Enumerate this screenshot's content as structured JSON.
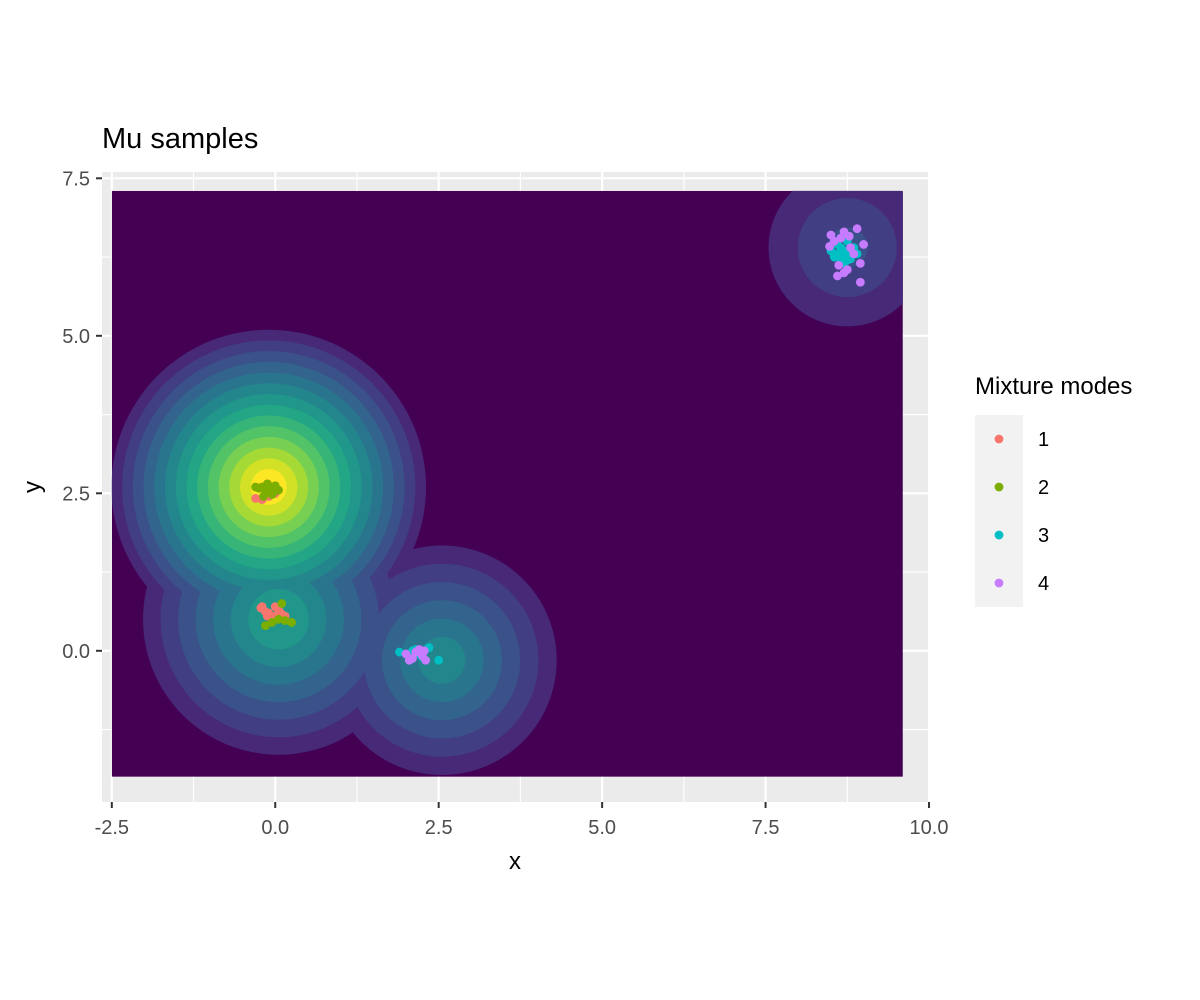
{
  "chart_data": {
    "type": "scatter",
    "title": "Mu samples",
    "xlabel": "x",
    "ylabel": "y",
    "xlim": [
      -2.65,
      10.0
    ],
    "ylim": [
      -2.4,
      7.6
    ],
    "x_ticks": [
      "-2.5",
      "0.0",
      "2.5",
      "5.0",
      "7.5",
      "10.0"
    ],
    "y_ticks": [
      "0.0",
      "2.5",
      "5.0",
      "7.5"
    ],
    "grid": true,
    "legend": {
      "title": "Mixture modes",
      "position": "right",
      "entries": [
        "1",
        "2",
        "3",
        "4"
      ]
    },
    "density_background": {
      "type": "filled_density_contour",
      "palette": "viridis",
      "x_range": [
        -2.5,
        9.6
      ],
      "y_range": [
        -2.0,
        7.3
      ],
      "modes": [
        {
          "x": -0.1,
          "y": 2.6,
          "peak": 1.0
        },
        {
          "x": 0.05,
          "y": 0.5,
          "peak": 0.55
        },
        {
          "x": 2.55,
          "y": -0.15,
          "peak": 0.45
        },
        {
          "x": 8.75,
          "y": 6.4,
          "peak": 0.22
        }
      ]
    },
    "series": [
      {
        "name": "1",
        "color": "#F8766D",
        "points": [
          [
            -0.15,
            2.55
          ],
          [
            -0.1,
            2.45
          ],
          [
            -0.05,
            2.6
          ],
          [
            -0.2,
            2.4
          ],
          [
            0.0,
            2.5
          ],
          [
            -0.12,
            2.65
          ],
          [
            -0.3,
            2.42
          ],
          [
            -0.08,
            2.5
          ],
          [
            -0.2,
            0.7
          ],
          [
            -0.1,
            0.6
          ],
          [
            0.0,
            0.55
          ],
          [
            0.1,
            0.58
          ],
          [
            -0.15,
            0.62
          ],
          [
            0.05,
            0.65
          ],
          [
            -0.05,
            0.52
          ],
          [
            0.15,
            0.55
          ],
          [
            -0.22,
            0.68
          ],
          [
            0.0,
            0.7
          ],
          [
            0.08,
            0.6
          ],
          [
            -0.12,
            0.55
          ]
        ]
      },
      {
        "name": "2",
        "color": "#7CAE00",
        "points": [
          [
            -0.2,
            2.6
          ],
          [
            -0.1,
            2.55
          ],
          [
            0.0,
            2.62
          ],
          [
            -0.15,
            2.5
          ],
          [
            -0.25,
            2.58
          ],
          [
            -0.05,
            2.48
          ],
          [
            -0.12,
            2.65
          ],
          [
            0.05,
            2.55
          ],
          [
            -0.3,
            2.6
          ],
          [
            -0.18,
            2.45
          ],
          [
            -0.08,
            2.58
          ],
          [
            -0.02,
            2.52
          ],
          [
            -0.15,
            0.4
          ],
          [
            0.1,
            0.75
          ],
          [
            0.25,
            0.45
          ],
          [
            -0.05,
            0.45
          ],
          [
            0.05,
            0.5
          ],
          [
            0.15,
            0.48
          ]
        ]
      },
      {
        "name": "3",
        "color": "#00BFC4",
        "points": [
          [
            1.9,
            -0.02
          ],
          [
            2.1,
            0.0
          ],
          [
            2.2,
            -0.05
          ],
          [
            2.35,
            0.05
          ],
          [
            2.5,
            -0.15
          ],
          [
            2.25,
            -0.1
          ],
          [
            2.15,
            0.02
          ],
          [
            8.6,
            6.3
          ],
          [
            8.7,
            6.35
          ],
          [
            8.75,
            6.2
          ],
          [
            8.65,
            6.4
          ],
          [
            8.8,
            6.3
          ],
          [
            8.55,
            6.25
          ],
          [
            8.7,
            6.15
          ],
          [
            8.85,
            6.4
          ],
          [
            8.5,
            6.35
          ],
          [
            8.9,
            6.3
          ],
          [
            8.6,
            6.45
          ],
          [
            8.75,
            6.5
          ],
          [
            8.7,
            6.28
          ],
          [
            8.8,
            6.22
          ],
          [
            8.65,
            6.18
          ]
        ]
      },
      {
        "name": "4",
        "color": "#C77CFF",
        "points": [
          [
            2.0,
            -0.05
          ],
          [
            2.1,
            -0.12
          ],
          [
            2.2,
            0.02
          ],
          [
            2.25,
            -0.08
          ],
          [
            2.3,
            -0.15
          ],
          [
            2.15,
            -0.02
          ],
          [
            2.28,
            0.0
          ],
          [
            2.05,
            -0.15
          ],
          [
            8.5,
            6.6
          ],
          [
            8.7,
            6.65
          ],
          [
            8.9,
            6.7
          ],
          [
            9.0,
            6.45
          ],
          [
            8.95,
            6.15
          ],
          [
            8.95,
            5.85
          ],
          [
            8.7,
            6.0
          ],
          [
            8.6,
            5.95
          ],
          [
            8.75,
            6.05
          ],
          [
            8.8,
            6.4
          ],
          [
            8.55,
            6.5
          ],
          [
            8.65,
            6.55
          ],
          [
            8.85,
            6.3
          ],
          [
            8.62,
            6.12
          ],
          [
            8.78,
            6.58
          ],
          [
            8.48,
            6.42
          ]
        ]
      }
    ]
  }
}
